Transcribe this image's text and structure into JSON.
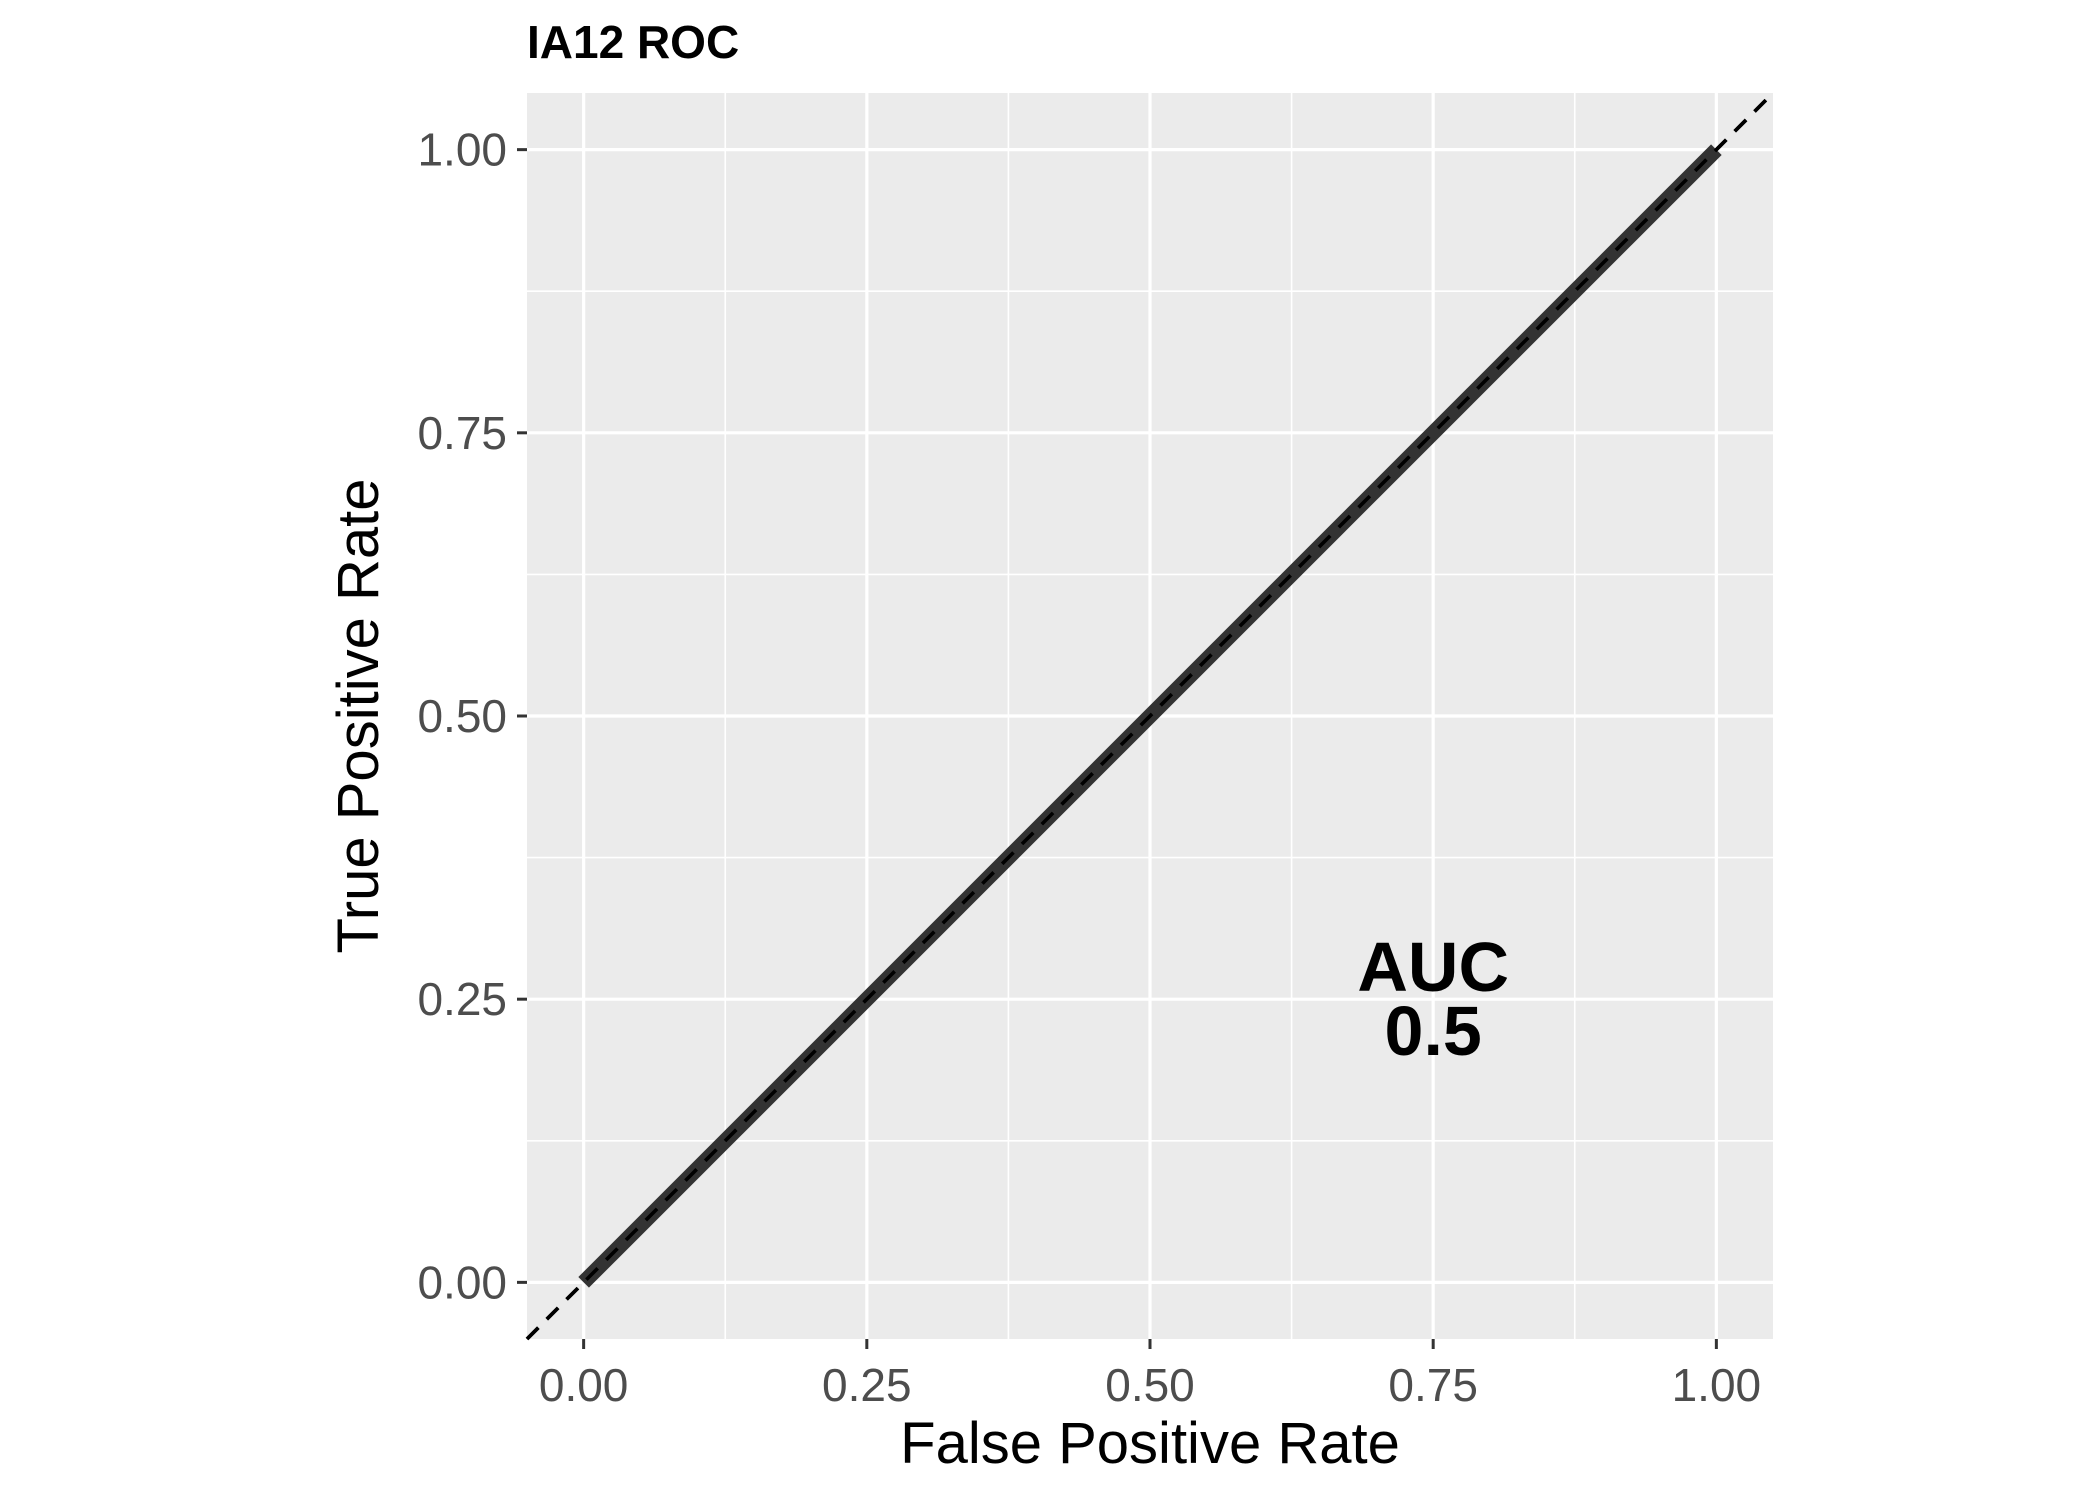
{
  "chart_data": {
    "type": "line",
    "title": "IA12 ROC",
    "xlabel": "False Positive Rate",
    "ylabel": "True Positive Rate",
    "xlim": [
      -0.05,
      1.05
    ],
    "ylim": [
      -0.05,
      1.05
    ],
    "x_ticks": [
      "0.00",
      "0.25",
      "0.50",
      "0.75",
      "1.00"
    ],
    "y_ticks": [
      "0.00",
      "0.25",
      "0.50",
      "0.75",
      "1.00"
    ],
    "grid": true,
    "legend": "none",
    "series": [
      {
        "x": [
          0.0,
          1.0
        ],
        "y": [
          0.0,
          1.0
        ],
        "color": "#333333",
        "style": "solid-thick"
      }
    ],
    "reference_line": {
      "slope": 1,
      "intercept": 0,
      "style": "dashed",
      "color": "#000000"
    },
    "annotations": [
      {
        "x": 0.75,
        "y": 0.25,
        "lines": [
          "AUC",
          "0.5"
        ]
      }
    ],
    "colors": {
      "panel_background": "#ebebeb",
      "grid": "#ffffff",
      "curve": "#333333"
    }
  }
}
